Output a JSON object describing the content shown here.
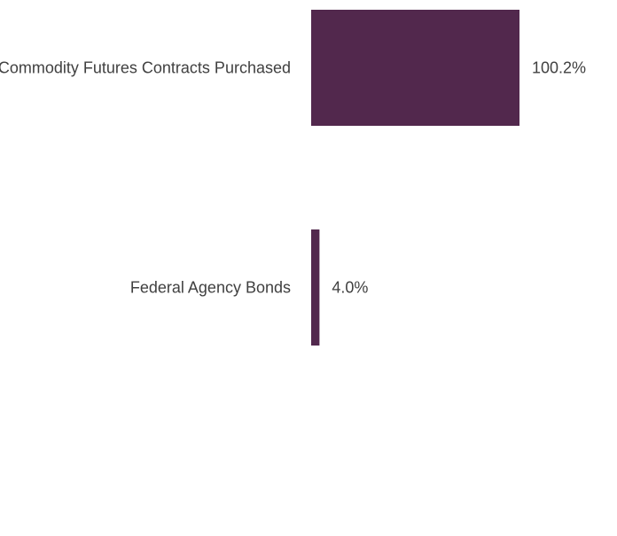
{
  "colors": {
    "bar": "#52284D",
    "text": "#404040",
    "background": "#FFFFFF"
  },
  "chart_data": {
    "type": "bar",
    "orientation": "horizontal",
    "title": "",
    "xlabel": "",
    "ylabel": "",
    "categories": [
      "Commodity Futures Contracts Purchased",
      "Federal Agency Bonds"
    ],
    "values": [
      100.2,
      4.0
    ],
    "data_labels": [
      "100.2%",
      "4.0%"
    ],
    "value_unit": "%",
    "xlim": [
      0,
      100.2
    ],
    "grid": false,
    "legend": "none"
  }
}
